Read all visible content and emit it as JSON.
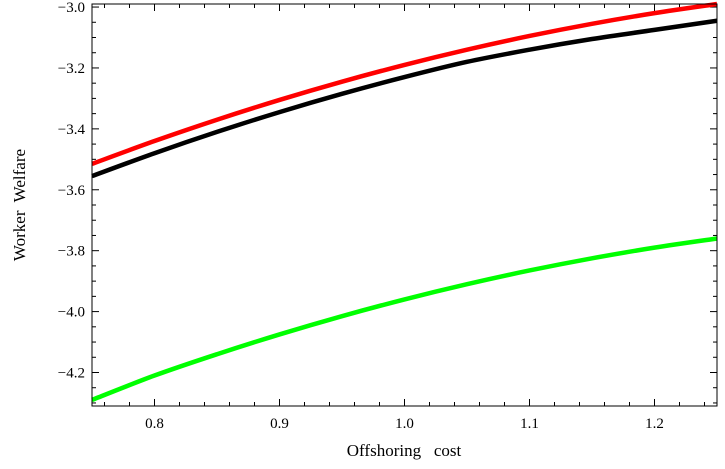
{
  "chart_data": {
    "type": "line",
    "title": "",
    "xlabel": "Offshoring   cost",
    "ylabel": "Worker  Welfare",
    "xlim": [
      0.75,
      1.25
    ],
    "ylim": [
      -4.31,
      -2.99
    ],
    "x_ticks": [
      0.8,
      0.9,
      1.0,
      1.1,
      1.2
    ],
    "x_tick_labels": [
      "0.8",
      "0.9",
      "1.0",
      "1.1",
      "1.2"
    ],
    "y_ticks": [
      -3.0,
      -3.2,
      -3.4,
      -3.6,
      -3.8,
      -4.0,
      -4.2
    ],
    "y_tick_labels": [
      "−3.0",
      "−3.2",
      "−3.4",
      "−3.6",
      "−3.8",
      "−4.0",
      "−4.2"
    ],
    "grid": false,
    "legend": "none",
    "series": [
      {
        "color": "#ff0000",
        "x": [
          0.75,
          0.8,
          0.85,
          0.9,
          0.95,
          1.0,
          1.05,
          1.1,
          1.15,
          1.2,
          1.25
        ],
        "y": [
          -3.515,
          -3.44,
          -3.37,
          -3.305,
          -3.245,
          -3.19,
          -3.14,
          -3.095,
          -3.055,
          -3.02,
          -2.99
        ]
      },
      {
        "color": "#000000",
        "x": [
          0.75,
          0.8,
          0.85,
          0.9,
          0.95,
          1.0,
          1.05,
          1.1,
          1.15,
          1.2,
          1.25
        ],
        "y": [
          -3.555,
          -3.48,
          -3.41,
          -3.345,
          -3.285,
          -3.23,
          -3.18,
          -3.14,
          -3.105,
          -3.075,
          -3.045
        ]
      },
      {
        "color": "#00ff00",
        "x": [
          0.75,
          0.8,
          0.85,
          0.9,
          0.95,
          1.0,
          1.05,
          1.1,
          1.15,
          1.2,
          1.25
        ],
        "y": [
          -4.29,
          -4.21,
          -4.14,
          -4.075,
          -4.015,
          -3.96,
          -3.91,
          -3.865,
          -3.825,
          -3.79,
          -3.76
        ]
      }
    ]
  }
}
